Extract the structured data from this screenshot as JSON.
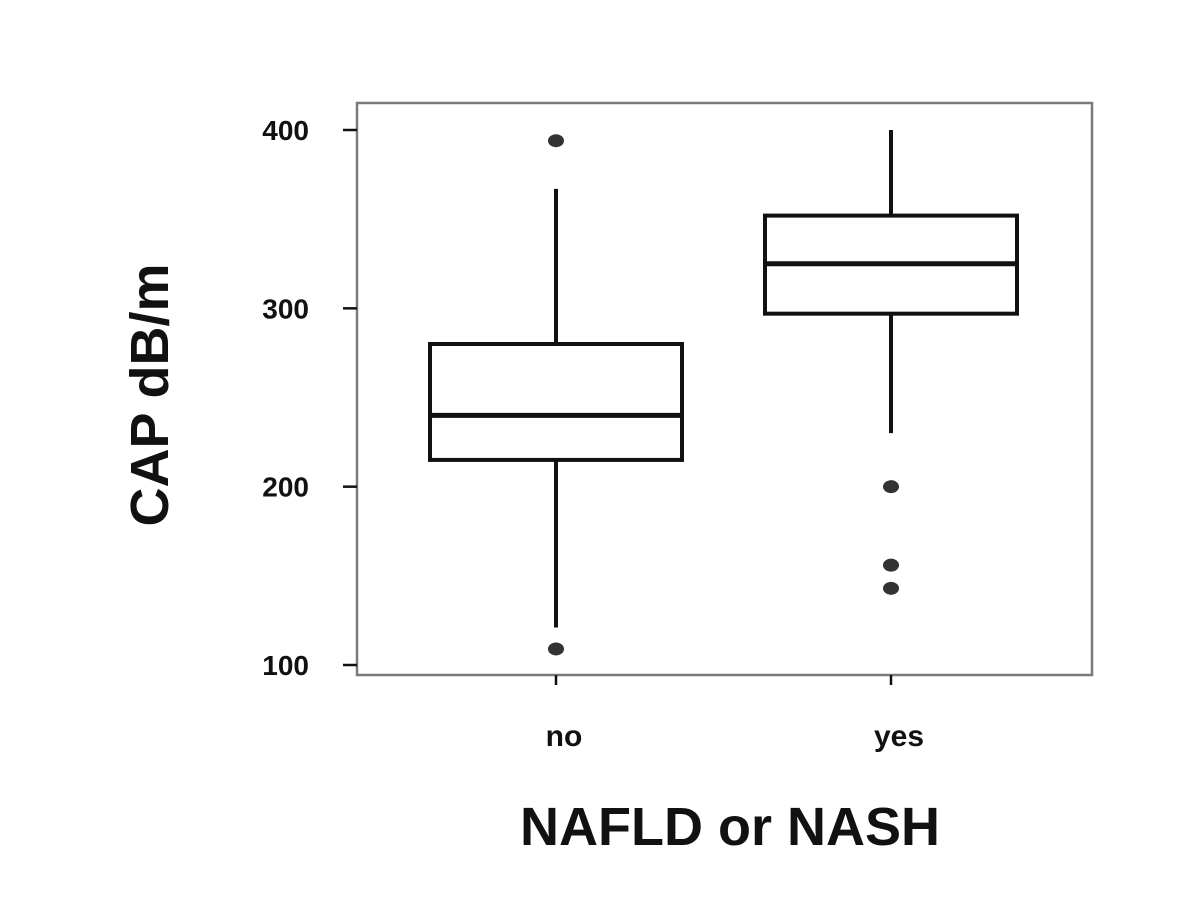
{
  "chart_data": {
    "type": "box",
    "xlabel": "NAFLD or NASH",
    "ylabel": "CAP dB/m",
    "categories": [
      "no",
      "yes"
    ],
    "ylim": [
      95,
      415
    ],
    "yticks": [
      100,
      200,
      300,
      400
    ],
    "grid": false,
    "boxes": [
      {
        "category": "no",
        "whisker_low": 121,
        "q1": 215,
        "median": 240,
        "q3": 280,
        "whisker_high": 367,
        "outliers": [
          394,
          109
        ]
      },
      {
        "category": "yes",
        "whisker_low": 230,
        "q1": 297,
        "median": 325,
        "q3": 352,
        "whisker_high": 400,
        "outliers": [
          200,
          156,
          143
        ]
      }
    ]
  }
}
